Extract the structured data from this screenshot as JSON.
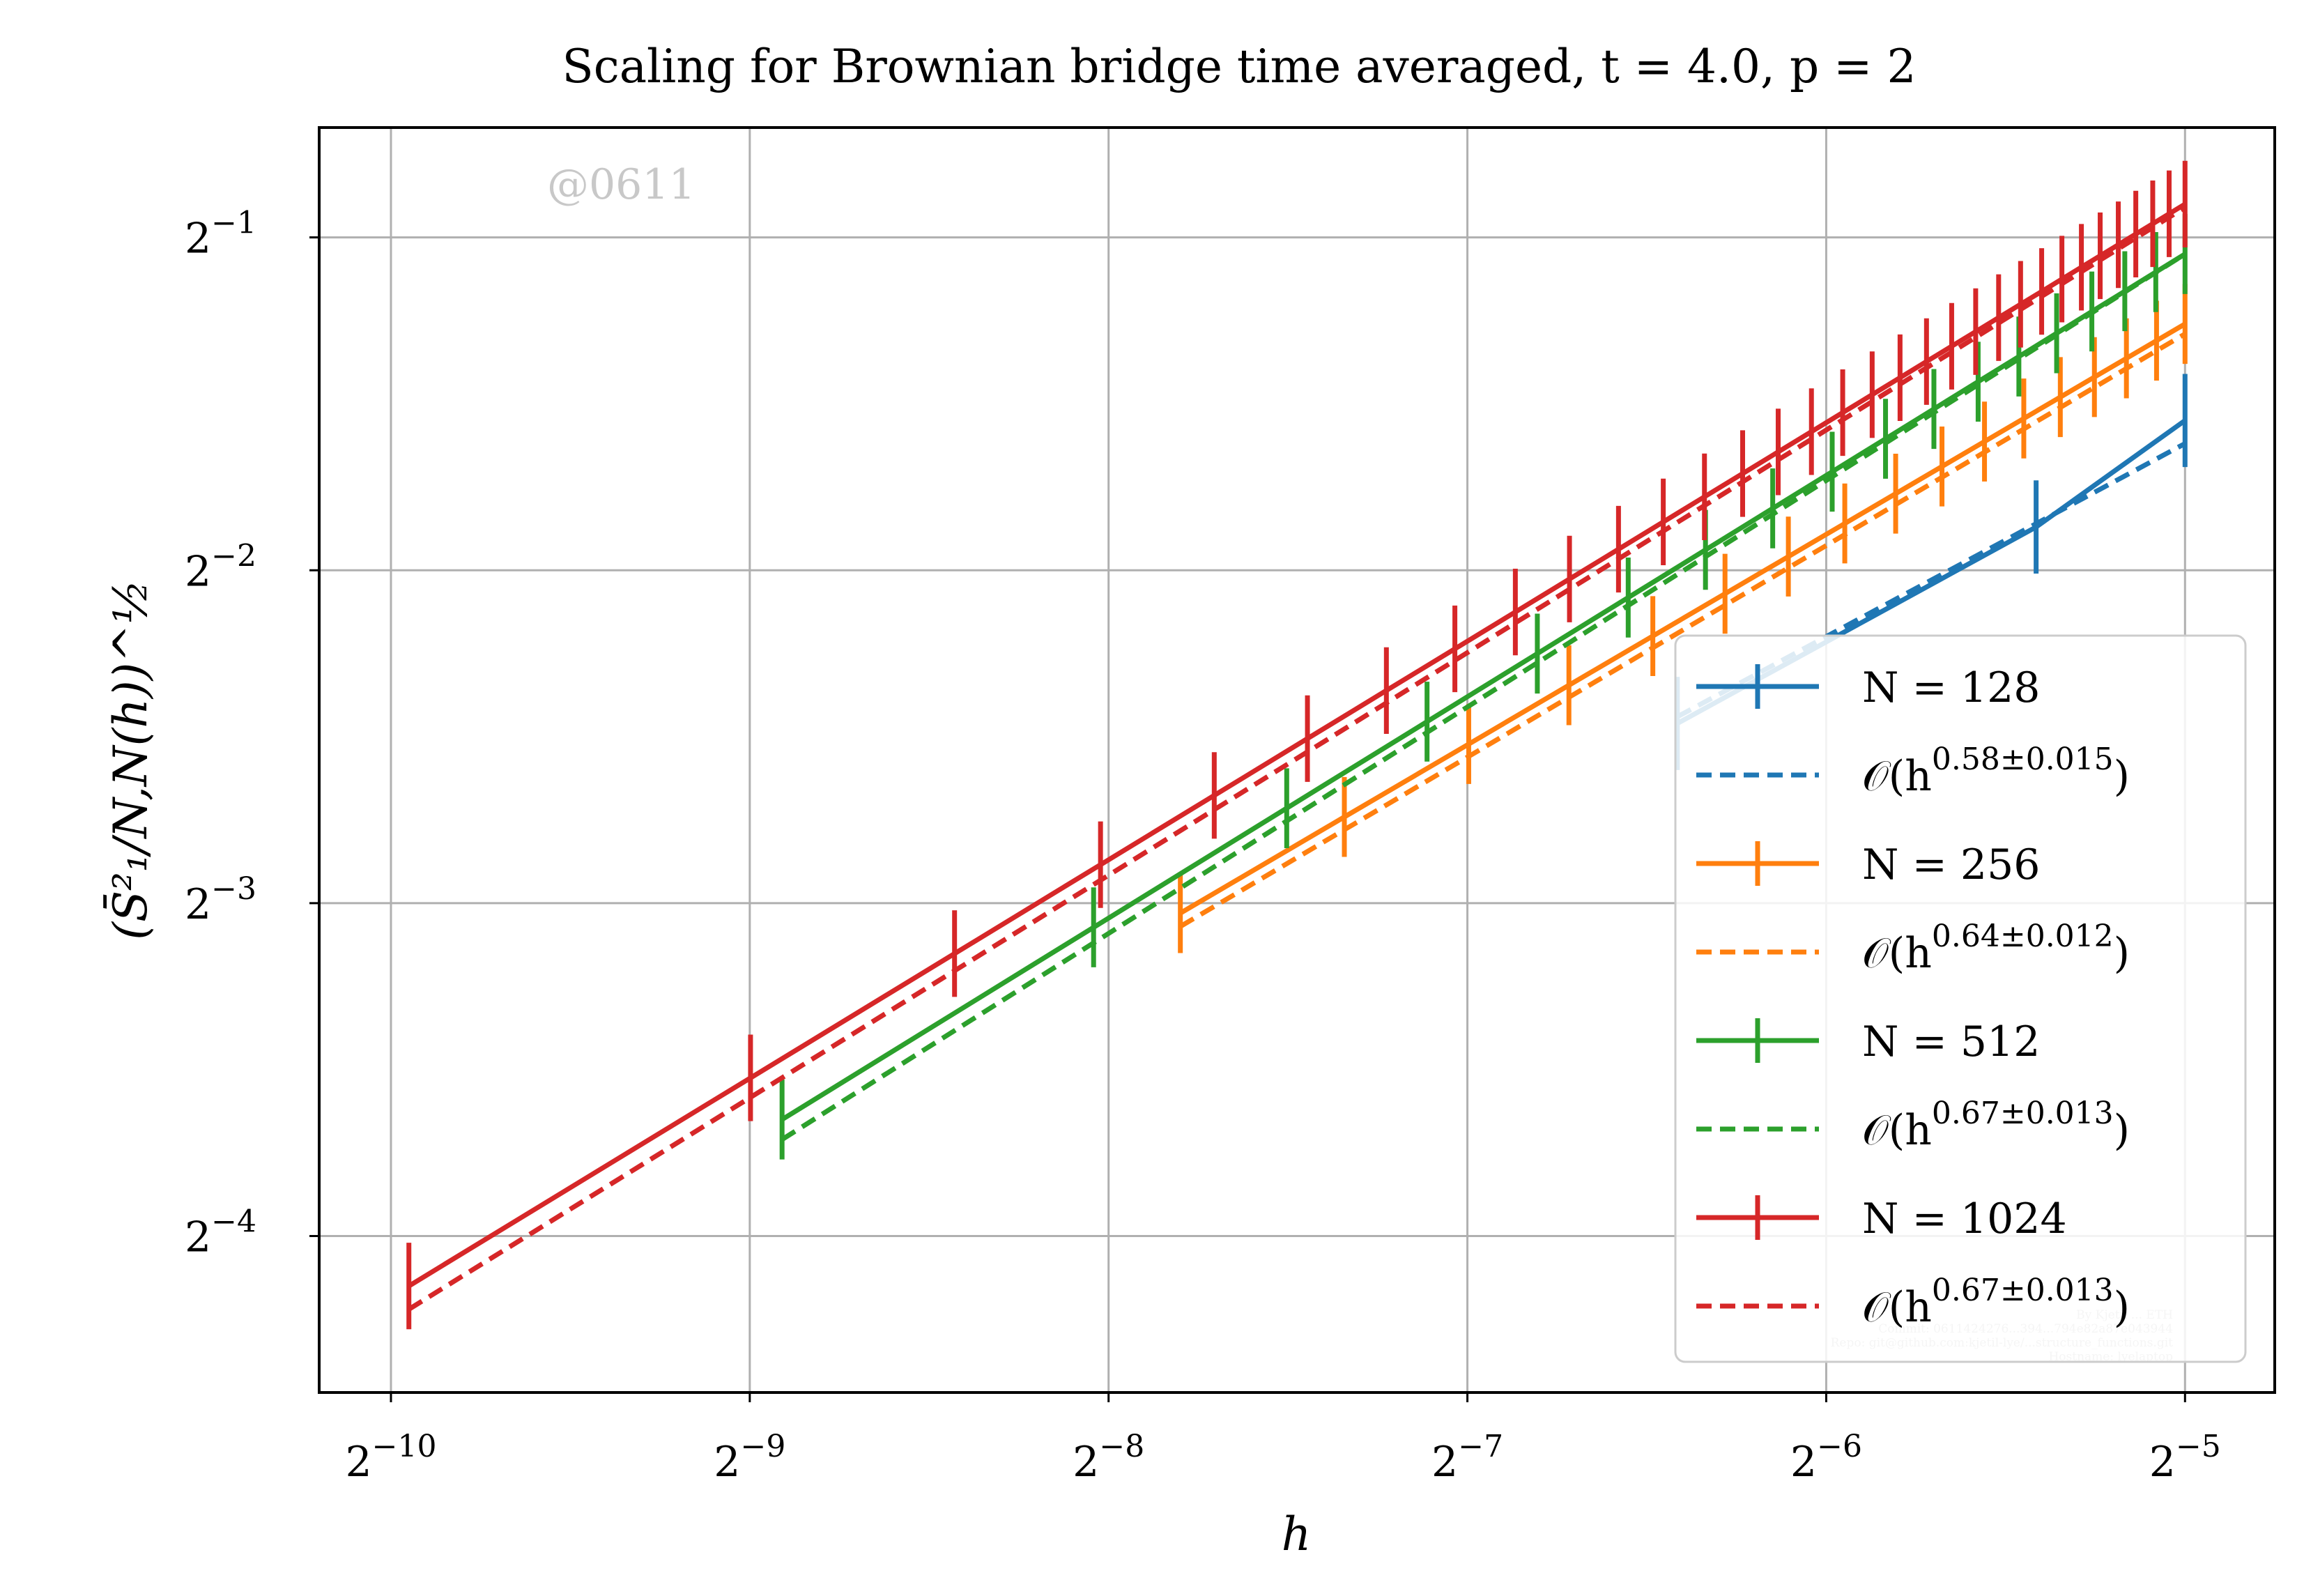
{
  "chart_data": {
    "type": "line",
    "title": "Scaling for Brownian bridge time averaged, t = 4.0, p = 2",
    "xlabel": "h",
    "ylabel": "(S̄²₁/N,N(h))^½",
    "x_scale": "log2",
    "y_scale": "log2",
    "xlim_log2": [
      -10.2,
      -4.75
    ],
    "ylim_log2": [
      -4.47,
      -0.67
    ],
    "x_ticks": [
      {
        "base": "2",
        "exp": "−10",
        "log2": -10
      },
      {
        "base": "2",
        "exp": "−9",
        "log2": -9
      },
      {
        "base": "2",
        "exp": "−8",
        "log2": -8
      },
      {
        "base": "2",
        "exp": "−7",
        "log2": -7
      },
      {
        "base": "2",
        "exp": "−6",
        "log2": -6
      },
      {
        "base": "2",
        "exp": "−5",
        "log2": -5
      }
    ],
    "y_ticks": [
      {
        "base": "2",
        "exp": "−1",
        "log2": -1
      },
      {
        "base": "2",
        "exp": "−2",
        "log2": -2
      },
      {
        "base": "2",
        "exp": "−3",
        "log2": -3
      },
      {
        "base": "2",
        "exp": "−4",
        "log2": -4
      }
    ],
    "grid": true,
    "legend_position": "lower right",
    "series": [
      {
        "name": "N = 128",
        "color": "#1f77b4",
        "N": 128,
        "x_log2": [
          -6.415,
          -5.415,
          -5.0
        ],
        "y_log2": [
          -2.46,
          -1.87,
          -1.55
        ],
        "err_log2": [
          0.14,
          0.14,
          0.14
        ],
        "fit_exponent": 0.58,
        "fit_label_base": "𝒪(h",
        "fit_label_exp": "0.58±0.015",
        "fit_y0_log2": -2.44
      },
      {
        "name": "N = 256",
        "color": "#ff7f0e",
        "N": 256,
        "n_points": 17,
        "h_min_log2": -7.8,
        "y_start_log2": -3.03,
        "y_end_log2": -1.26,
        "err_log2": 0.12,
        "fit_exponent": 0.64,
        "fit_label_base": "𝒪(h",
        "fit_label_exp": "0.64±0.012",
        "fit_y0_log2": -3.07,
        "fit_y1_log2": -1.29
      },
      {
        "name": "N = 512",
        "color": "#2ca02c",
        "N": 512,
        "n_points": 18,
        "h_min_log2": -8.91,
        "y_start_log2": -3.65,
        "y_end_log2": -1.05,
        "err_log2": 0.12,
        "fit_exponent": 0.67,
        "fit_label_base": "𝒪(h",
        "fit_label_exp": "0.67±0.013",
        "fit_y0_log2": -3.71,
        "fit_y1_log2": -1.05
      },
      {
        "name": "N = 1024",
        "color": "#d62728",
        "N": 1024,
        "n_points": 33,
        "h_min_log2": -9.95,
        "y_start_log2": -4.15,
        "y_end_log2": -0.9,
        "err_log2": 0.13,
        "fit_exponent": 0.67,
        "fit_label_base": "𝒪(h",
        "fit_label_exp": "0.67±0.013",
        "fit_y0_log2": -4.22,
        "fit_y1_log2": -0.91
      }
    ]
  },
  "watermark": "@0611",
  "footer_lines": [
    "By Kjetil ... ETH",
    "Commit: 0611424276...394...794e82a87e043944",
    "Repo: git@github.com:kjetil-lye/...structure_functions.git",
    "Hostname: lyelaptop"
  ]
}
